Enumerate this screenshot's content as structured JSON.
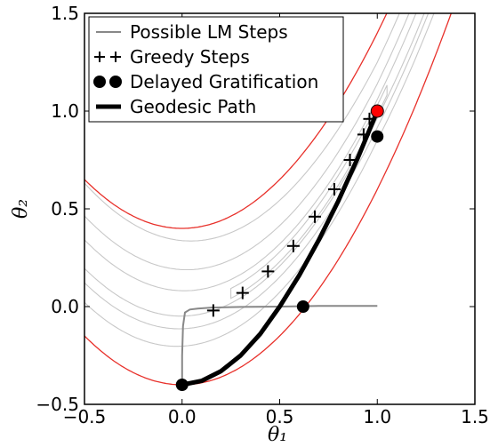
{
  "chart_data": {
    "type": "line",
    "xlabel": "θ₁",
    "ylabel": "θ₂",
    "xlim": [
      -0.5,
      1.5
    ],
    "ylim": [
      -0.5,
      1.5
    ],
    "x_ticks": [
      "-0.5",
      "0.0",
      "0.5",
      "1.0",
      "1.5"
    ],
    "y_ticks": [
      "-0.5",
      "0.0",
      "0.5",
      "1.0",
      "1.5"
    ],
    "grid": false,
    "legend_position": "top-left",
    "legend": [
      {
        "label": "Possible LM Steps",
        "symbol": "line",
        "color": "#888888"
      },
      {
        "label": "Greedy Steps",
        "symbol": "plus",
        "color": "#000000"
      },
      {
        "label": "Delayed Gratification",
        "symbol": "dot",
        "color": "#000000"
      },
      {
        "label": "Geodesic Path",
        "symbol": "thick-line",
        "color": "#000000"
      }
    ],
    "contours": {
      "description": "Rosenbrock-like cost function level sets y ≈ x² ± w",
      "red_levels_offset": [
        0.4
      ],
      "gray_levels_offset": [
        0.06,
        0.14,
        0.25
      ],
      "red_color": "#e8302a",
      "gray_color": "#c8c8c8"
    },
    "series": [
      {
        "name": "Possible LM Steps",
        "color": "#888888",
        "x": [
          0.0,
          0.0,
          0.005,
          0.015,
          0.04,
          0.08,
          0.15,
          0.3,
          0.5,
          0.7,
          1.0
        ],
        "y": [
          -0.4,
          -0.25,
          -0.1,
          -0.03,
          -0.015,
          -0.01,
          -0.005,
          -0.002,
          0.0,
          0.003,
          0.003
        ]
      },
      {
        "name": "Greedy Steps",
        "color": "#000000",
        "x": [
          0.16,
          0.31,
          0.44,
          0.57,
          0.68,
          0.78,
          0.86,
          0.93,
          0.96
        ],
        "y": [
          -0.02,
          0.07,
          0.18,
          0.31,
          0.46,
          0.6,
          0.75,
          0.88,
          0.96
        ]
      },
      {
        "name": "Delayed Gratification",
        "color": "#000000",
        "x": [
          0.0,
          0.62,
          1.0
        ],
        "y": [
          -0.4,
          0.0,
          0.87
        ]
      },
      {
        "name": "Geodesic Path",
        "color": "#000000",
        "x": [
          0.0,
          0.1,
          0.2,
          0.3,
          0.4,
          0.5,
          0.6,
          0.7,
          0.8,
          0.9,
          1.0
        ],
        "y": [
          -0.4,
          -0.38,
          -0.33,
          -0.25,
          -0.14,
          0.0,
          0.16,
          0.34,
          0.54,
          0.76,
          1.0
        ]
      }
    ],
    "target_point": {
      "x": 1.0,
      "y": 1.0,
      "color": "#ff0000"
    }
  }
}
